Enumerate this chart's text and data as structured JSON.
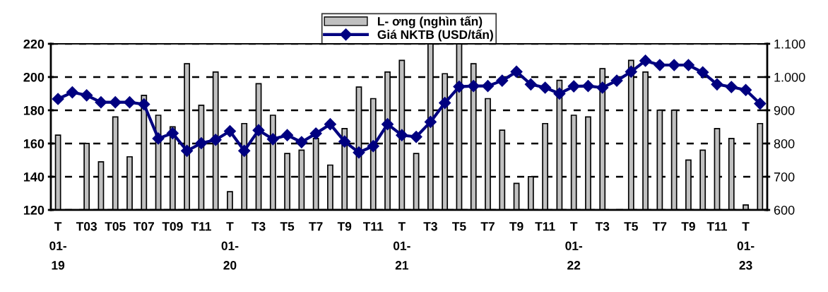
{
  "chart_data": {
    "type": "bar",
    "categories": [
      "T\n01-\n19",
      null,
      "T03",
      null,
      "T05",
      null,
      "T07",
      null,
      "T09",
      null,
      "T11",
      null,
      "T\n01-\n20",
      null,
      "T3",
      null,
      "T5",
      null,
      "T7",
      null,
      "T9",
      null,
      "T11",
      null,
      "T\n01-\n21",
      null,
      "T3",
      null,
      "T5",
      null,
      "T7",
      null,
      "T9",
      null,
      "T11",
      null,
      "T\n01-\n22",
      null,
      "T3",
      null,
      "T5",
      null,
      "T7",
      null,
      "T9",
      null,
      "T11",
      null,
      "T\n01-\n23",
      null
    ],
    "series": [
      {
        "name": "L- ơng (nghìn tấn)",
        "color": "#c0c0c0",
        "values": [
          165,
          null,
          160,
          149,
          176,
          152,
          189,
          177,
          170,
          208,
          183,
          203,
          131,
          172,
          196,
          177,
          154,
          156,
          163,
          147,
          169,
          194,
          187,
          203,
          210,
          154,
          220,
          202,
          220,
          208,
          187,
          168,
          136,
          140,
          172,
          198,
          177,
          176,
          205,
          null,
          210,
          203,
          180,
          180,
          150,
          156,
          169,
          163,
          123,
          172
        ]
      },
      {
        "name": "Giá NKTB (USD/tấn)",
        "type": "line",
        "axis": "y2",
        "color": "#000080",
        "marker": "diamond",
        "values": [
          934,
          954,
          945,
          924,
          924,
          924,
          918,
          815,
          831,
          778,
          801,
          811,
          837,
          778,
          840,
          813,
          825,
          804,
          830,
          858,
          806,
          773,
          792,
          858,
          825,
          820,
          865,
          922,
          971,
          973,
          973,
          989,
          1016,
          978,
          968,
          950,
          972,
          973,
          968,
          989,
          1016,
          1049,
          1036,
          1036,
          1036,
          1014,
          978,
          970,
          961,
          920
        ]
      }
    ],
    "ylim": [
      120,
      220
    ],
    "yticks": [
      120,
      140,
      160,
      180,
      200,
      220
    ],
    "y2lim": [
      600,
      1100
    ],
    "y2ticks": [
      600,
      700,
      800,
      900,
      {
        "value": 1000,
        "label": "1.000"
      },
      {
        "value": 1100,
        "label": "1.100"
      }
    ],
    "grid": "y",
    "legend": "top"
  }
}
